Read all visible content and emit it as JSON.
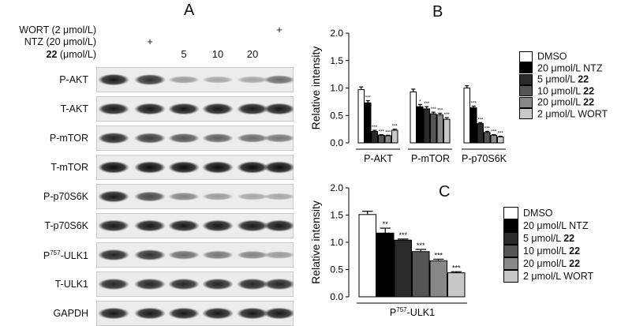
{
  "panel_labels": [
    "A",
    "B",
    "C"
  ],
  "panel_a": {
    "treatments": [
      {
        "label": "WORT (2 μmol/L)",
        "bold_part": "",
        "values": [
          "",
          "",
          "",
          "",
          "",
          "+"
        ]
      },
      {
        "label": "NTZ (20 μmol/L)",
        "bold_part": "",
        "values": [
          "",
          "+",
          "",
          "",
          "",
          ""
        ]
      },
      {
        "label": " (μmol/L)",
        "bold_part": "22",
        "values": [
          "",
          "",
          "5",
          "10",
          "20",
          ""
        ]
      }
    ],
    "blots": [
      {
        "label": "P-AKT",
        "intensity": [
          0.9,
          0.8,
          0.35,
          0.3,
          0.3,
          0.55
        ]
      },
      {
        "label": "T-AKT",
        "intensity": [
          0.9,
          0.9,
          0.9,
          0.9,
          0.9,
          0.9
        ]
      },
      {
        "label": "P-mTOR",
        "intensity": [
          0.85,
          0.75,
          0.65,
          0.6,
          0.55,
          0.5
        ]
      },
      {
        "label": "T-mTOR",
        "intensity": [
          0.95,
          0.95,
          0.95,
          0.95,
          0.95,
          0.95
        ]
      },
      {
        "label": "P-p70S6K",
        "intensity": [
          0.9,
          0.7,
          0.45,
          0.35,
          0.3,
          0.3
        ]
      },
      {
        "label": "T-p70S6K",
        "intensity": [
          0.9,
          0.9,
          0.9,
          0.9,
          0.9,
          0.9
        ]
      },
      {
        "label_base": "P",
        "label_sup": "757",
        "label_rest": "-ULK1",
        "intensity": [
          0.85,
          0.8,
          0.55,
          0.5,
          0.45,
          0.35
        ]
      },
      {
        "label": "T-ULK1",
        "intensity": [
          0.85,
          0.85,
          0.85,
          0.85,
          0.85,
          0.85
        ]
      },
      {
        "label": "GAPDH",
        "intensity": [
          0.9,
          0.9,
          0.9,
          0.9,
          0.9,
          0.9
        ]
      }
    ]
  },
  "legend": [
    {
      "label": "DMSO",
      "bold_part": "",
      "color": "#ffffff"
    },
    {
      "label": "20 μmol/L NTZ",
      "bold_part": "",
      "color": "#000000"
    },
    {
      "label": "5 μmol/L ",
      "bold_part": "22",
      "color": "#2a2a2a"
    },
    {
      "label": "10 μmol/L ",
      "bold_part": "22",
      "color": "#555555"
    },
    {
      "label": "20 μmol/L ",
      "bold_part": "22",
      "color": "#888888"
    },
    {
      "label": "2 μmol/L WORT",
      "bold_part": "",
      "color": "#c8c8c8"
    }
  ],
  "chart_data": [
    {
      "type": "bar",
      "panel": "B",
      "categories": [
        "P-AKT",
        "P-mTOR",
        "P-p70S6K"
      ],
      "ylabel": "Relative intensity",
      "ylim": [
        0,
        2.0
      ],
      "yticks": [
        "0.0",
        "0.5",
        "1.0",
        "1.5",
        "2.0"
      ],
      "series": [
        {
          "name": "DMSO",
          "values": [
            0.97,
            0.93,
            1.0
          ],
          "errors": [
            0.05,
            0.05,
            0.04
          ]
        },
        {
          "name": "20 μmol/L NTZ",
          "values": [
            0.73,
            0.66,
            0.64
          ],
          "errors": [
            0.04,
            0.04,
            0.03
          ]
        },
        {
          "name": "5 μmol/L 22",
          "values": [
            0.21,
            0.62,
            0.35
          ],
          "errors": [
            0.02,
            0.04,
            0.02
          ]
        },
        {
          "name": "10 μmol/L 22",
          "values": [
            0.14,
            0.53,
            0.19
          ],
          "errors": [
            0.01,
            0.03,
            0.02
          ]
        },
        {
          "name": "20 μmol/L 22",
          "values": [
            0.13,
            0.51,
            0.14
          ],
          "errors": [
            0.01,
            0.03,
            0.01
          ]
        },
        {
          "name": "2 μmol/L WORT",
          "values": [
            0.23,
            0.43,
            0.11
          ],
          "errors": [
            0.02,
            0.03,
            0.01
          ]
        }
      ],
      "annotations": [
        [
          "",
          "***",
          "***",
          "***",
          "***",
          "***"
        ],
        [
          "",
          "*",
          "***",
          "***",
          "***",
          "***"
        ],
        [
          "",
          "***",
          "***",
          "***",
          "***",
          "***"
        ]
      ],
      "legend_position": "right"
    },
    {
      "type": "bar",
      "panel": "C",
      "categories": [
        "P757-ULK1"
      ],
      "category_label": {
        "base": "P",
        "sup": "757",
        "rest": "-ULK1"
      },
      "ylabel": "Relative intensity",
      "ylim": [
        0,
        2.0
      ],
      "yticks": [
        "0.0",
        "0.5",
        "1.0",
        "1.5",
        "2.0"
      ],
      "series": [
        {
          "name": "DMSO",
          "values": [
            1.51
          ],
          "errors": [
            0.06
          ]
        },
        {
          "name": "20 μmol/L NTZ",
          "values": [
            1.17
          ],
          "errors": [
            0.09
          ]
        },
        {
          "name": "5 μmol/L 22",
          "values": [
            1.04
          ],
          "errors": [
            0.02
          ]
        },
        {
          "name": "10 μmol/L 22",
          "values": [
            0.83
          ],
          "errors": [
            0.04
          ]
        },
        {
          "name": "20 μmol/L 22",
          "values": [
            0.66
          ],
          "errors": [
            0.03
          ]
        },
        {
          "name": "2 μmol/L WORT",
          "values": [
            0.44
          ],
          "errors": [
            0.02
          ]
        }
      ],
      "annotations": [
        [
          "",
          "**",
          "***",
          "***",
          "***",
          "***"
        ]
      ],
      "legend_position": "right"
    }
  ]
}
